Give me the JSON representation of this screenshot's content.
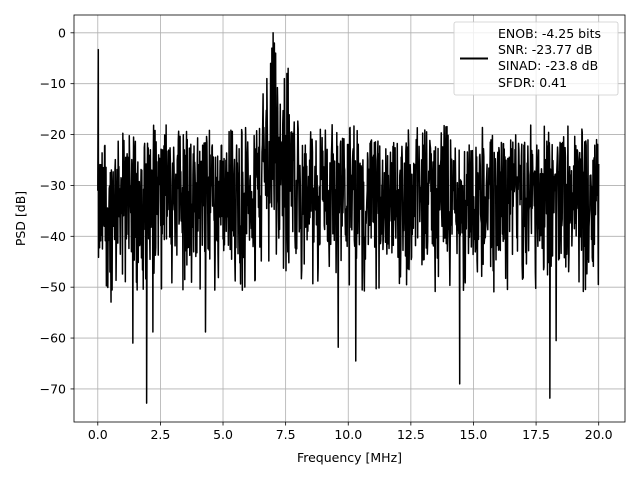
{
  "chart_data": {
    "type": "line",
    "title": "",
    "xlabel": "Frequency [MHz]",
    "ylabel": "PSD [dB]",
    "xlim": [
      -0.95,
      21.05
    ],
    "ylim": [
      -76.5,
      3.5
    ],
    "xticks": [
      0.0,
      2.5,
      5.0,
      7.5,
      10.0,
      12.5,
      15.0,
      17.5,
      20.0
    ],
    "xtick_labels": [
      "0.0",
      "2.5",
      "5.0",
      "7.5",
      "10.0",
      "12.5",
      "15.0",
      "17.5",
      "20.0"
    ],
    "yticks": [
      0,
      -10,
      -20,
      -30,
      -40,
      -50,
      -60,
      -70
    ],
    "ytick_labels": [
      "0",
      "−10",
      "−20",
      "−30",
      "−40",
      "−50",
      "−60",
      "−70"
    ],
    "grid": true,
    "legend_position": "top-right",
    "series": [
      {
        "color": "#000000",
        "legend_lines": [
          "ENOB: -4.25 bits",
          "SNR: -23.77 dB",
          "SINAD: -23.8 dB",
          "SFDR: 0.41"
        ],
        "x_range": [
          0.0,
          20.0
        ],
        "noise_floor_top_dB": -21,
        "noise_floor_bottom_dB": -45,
        "spikes": [
          {
            "x": 0.02,
            "y": -3.3
          },
          {
            "x": 7.0,
            "y": 0.0
          },
          {
            "x": 7.6,
            "y": -7.0
          },
          {
            "x": 1.95,
            "y": -72.8
          },
          {
            "x": 18.05,
            "y": -71.8
          },
          {
            "x": 14.45,
            "y": -69.0
          },
          {
            "x": 10.3,
            "y": -64.5
          },
          {
            "x": 9.6,
            "y": -61.8
          },
          {
            "x": 1.4,
            "y": -61.0
          },
          {
            "x": 18.3,
            "y": -60.5
          },
          {
            "x": 2.2,
            "y": -58.8
          },
          {
            "x": 4.3,
            "y": -58.8
          }
        ]
      }
    ]
  }
}
